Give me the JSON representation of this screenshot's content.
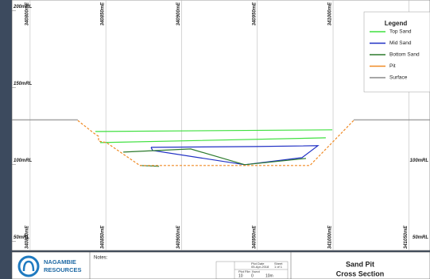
{
  "chart_data": {
    "type": "line",
    "title": "Sand Pit",
    "subtitle": "Cross Section",
    "legend_title": "Legend",
    "xlim": [
      340788,
      341064
    ],
    "ylim": [
      44,
      207
    ],
    "xticks": [
      {
        "value": 340800,
        "label": "340800mE"
      },
      {
        "value": 340850,
        "label": "340850mE"
      },
      {
        "value": 340900,
        "label": "340900mE"
      },
      {
        "value": 340950,
        "label": "340950mE"
      },
      {
        "value": 341000,
        "label": "341000mE"
      },
      {
        "value": 341050,
        "label": "341050mE"
      }
    ],
    "yticks": [
      {
        "value": 50,
        "label": "50mRL"
      },
      {
        "value": 100,
        "label": "100mRL"
      },
      {
        "value": 150,
        "label": "150mRL"
      },
      {
        "value": 200,
        "label": "200mRL"
      }
    ],
    "series": [
      {
        "name": "Top Sand",
        "color": "#3fe03f",
        "x": [
          340843.1,
          340999.5,
          null,
          340846.2,
          340995.2
        ],
        "values": [
          121.4,
          122.5,
          null,
          114.2,
          117.3
        ]
      },
      {
        "name": "Mid Sand",
        "color": "#1f2fc4",
        "x": [
          340879.8,
          340948.0,
          340990.0,
          340979.5,
          340941.7,
          340880.9,
          340879.8
        ],
        "values": [
          111.1,
          111.6,
          112.2,
          104.4,
          99.8,
          109.1,
          111.1
        ]
      },
      {
        "name": "Bottom Sand",
        "color": "#2c7a2c",
        "x": [
          340861.5,
          340906.0,
          340941.7,
          340982.1,
          null,
          340872.5,
          340885.1
        ],
        "values": [
          108.0,
          110.1,
          99.8,
          103.9,
          null,
          99.3,
          98.8
        ]
      },
      {
        "name": "Pit",
        "color": "#f08a24",
        "dashed": true,
        "x": [
          340831.5,
          340842,
          340845.2,
          340845.2,
          340850.4,
          340872.5,
          340984.7,
          341013.6
        ],
        "values": [
          128.6,
          120.4,
          118.3,
          115.2,
          114.2,
          99.3,
          99.3,
          128.6
        ]
      },
      {
        "name": "Surface",
        "color": "#8a8a8a",
        "x": [
          340788,
          340831.5,
          null,
          341013.6,
          341064
        ],
        "values": [
          129,
          129,
          null,
          129,
          129
        ]
      }
    ]
  },
  "title_block": {
    "company": [
      "NAGAMBIE",
      "RESOURCES"
    ],
    "notes": "Notes:",
    "plot_date_label": "Plot Date",
    "plot_date": "05-Apr-2018",
    "sheet_label": "Sheet",
    "sheet": "1 of 1",
    "plot_file": "Plot File: Xsect",
    "scale": [
      "10",
      "0",
      "10m"
    ]
  }
}
